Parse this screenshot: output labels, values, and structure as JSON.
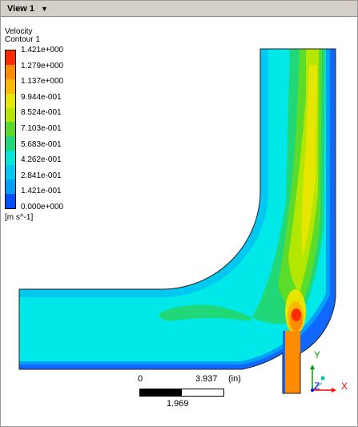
{
  "view": {
    "tab_label": "View 1"
  },
  "legend": {
    "title_line1": "Velocity",
    "title_line2": "Contour 1",
    "labels": [
      "1.421e+000",
      "1.279e+000",
      "1.137e+000",
      "9.944e-001",
      "8.524e-001",
      "7.103e-001",
      "5.683e-001",
      "4.262e-001",
      "2.841e-001",
      "1.421e-001",
      "0.000e+000"
    ],
    "colors": [
      "#ff2a00",
      "#ff8c00",
      "#ffb800",
      "#e6e600",
      "#b3e600",
      "#5cdc2a",
      "#20d878",
      "#00e8d8",
      "#00c8f0",
      "#00a0f8",
      "#0050ff"
    ],
    "unit": "[m s^-1]"
  },
  "scale": {
    "left_label": "0",
    "right_label": "3.937",
    "unit": "(in)",
    "mid_label": "1.969"
  },
  "axes": {
    "y": "Y",
    "z": "Z",
    "x": "X",
    "y_color": "#00a000",
    "z_color": "#0000ff",
    "x_color": "#ff0000"
  },
  "colors": {
    "background": "#00e8e8",
    "wall": "#1068ff"
  }
}
